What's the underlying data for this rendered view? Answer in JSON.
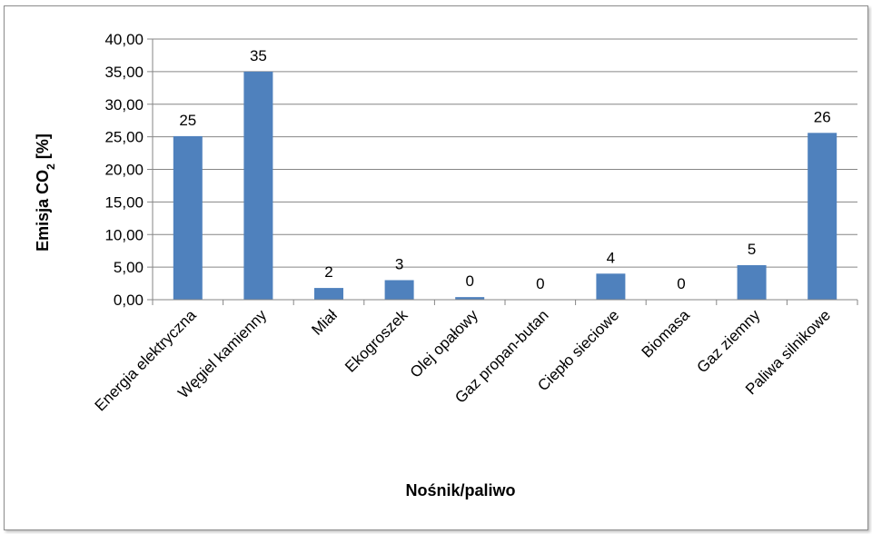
{
  "chart_data": {
    "type": "bar",
    "categories": [
      "Energia elektryczna",
      "Węgiel kamienny",
      "Miał",
      "Ekogroszek",
      "Olej opałowy",
      "Gaz propan-butan",
      "Ciepło sieciowe",
      "Biomasa",
      "Gaz ziemny",
      "Paliwa silnikowe"
    ],
    "values": [
      25.1,
      35.0,
      1.8,
      3.0,
      0.4,
      0.0,
      4.0,
      0.0,
      5.3,
      25.6
    ],
    "data_labels": [
      "25",
      "35",
      "2",
      "3",
      "0",
      "0",
      "4",
      "0",
      "5",
      "26"
    ],
    "ylabel_main": "Emisja CO",
    "ylabel_sub": "2",
    "ylabel_unit": " [%]",
    "xlabel": "Nośnik/paliwo",
    "yticks": [
      "0,00",
      "5,00",
      "10,00",
      "15,00",
      "20,00",
      "25,00",
      "30,00",
      "35,00",
      "40,00"
    ],
    "ylim": [
      0,
      40
    ],
    "grid": true,
    "bar_color": "#4f81bd",
    "grid_color": "#868686"
  }
}
